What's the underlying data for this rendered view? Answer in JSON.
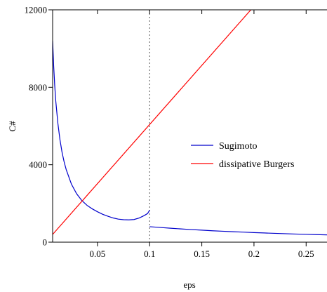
{
  "chart_data": {
    "type": "line",
    "title": "",
    "xlabel": "eps",
    "ylabel": "C#",
    "xlim": [
      0.007,
      0.27
    ],
    "ylim": [
      0,
      12000
    ],
    "x_ticks": [
      0.05,
      0.1,
      0.15,
      0.2,
      0.25
    ],
    "x_tick_labels": [
      "0.05",
      "0.1",
      "0.15",
      "0.2",
      "0.25"
    ],
    "y_ticks": [
      0,
      4000,
      8000,
      12000
    ],
    "y_tick_labels": [
      "0",
      "4000",
      "8000",
      "12000"
    ],
    "grid": false,
    "legend": {
      "position": "right-middle"
    },
    "reference_lines": [
      {
        "orientation": "vertical",
        "x": 0.1,
        "style": "dotted",
        "color": "#555555"
      }
    ],
    "series": [
      {
        "name": "Sugimoto",
        "color": "#0000cc",
        "segments": [
          {
            "x": [
              0.007,
              0.008,
              0.009,
              0.01,
              0.012,
              0.014,
              0.016,
              0.018,
              0.02,
              0.025,
              0.03,
              0.035,
              0.04,
              0.045,
              0.05,
              0.055,
              0.06,
              0.065,
              0.07,
              0.075,
              0.08,
              0.085,
              0.09,
              0.095,
              0.098,
              0.1
            ],
            "y": [
              10400,
              9100,
              8100,
              7300,
              6150,
              5300,
              4650,
              4150,
              3750,
              3000,
              2500,
              2150,
              1900,
              1720,
              1570,
              1440,
              1340,
              1250,
              1190,
              1160,
              1150,
              1170,
              1250,
              1380,
              1480,
              1650
            ]
          },
          {
            "x": [
              0.1,
              0.11,
              0.12,
              0.13,
              0.14,
              0.15,
              0.16,
              0.17,
              0.18,
              0.19,
              0.2,
              0.21,
              0.22,
              0.23,
              0.24,
              0.25,
              0.26,
              0.27
            ],
            "y": [
              800,
              760,
              720,
              685,
              650,
              620,
              590,
              565,
              540,
              518,
              495,
              475,
              455,
              437,
              420,
              405,
              390,
              375
            ]
          }
        ]
      },
      {
        "name": "dissipative Burgers",
        "color": "#ff0000",
        "segments": [
          {
            "x": [
              0.007,
              0.197
            ],
            "y": [
              400,
              12000
            ]
          }
        ]
      }
    ]
  }
}
